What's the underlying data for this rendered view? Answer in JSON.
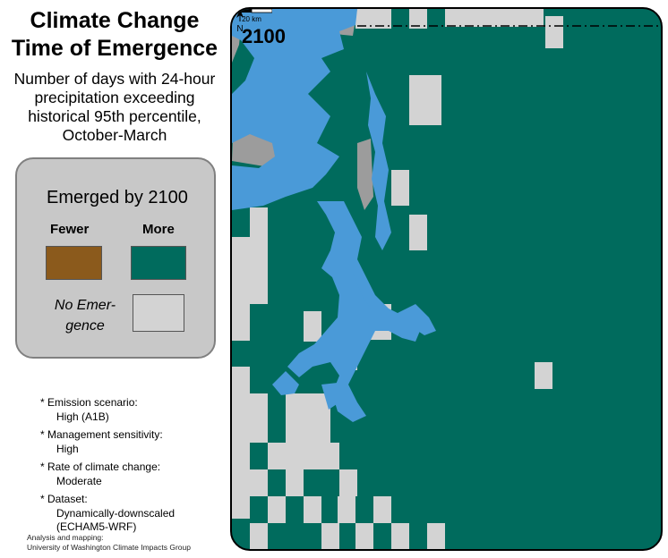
{
  "title": {
    "line1": "Climate Change",
    "line2": "Time of Emergence"
  },
  "subtitle": {
    "line1": "Number of days with 24-hour",
    "line2": "precipitation exceeding",
    "line3": "historical 95th percentile,",
    "line4": "October-March"
  },
  "legend": {
    "title": "Emerged by 2100",
    "fewer_label": "Fewer",
    "more_label": "More",
    "no_emergence_line1": "No Emer-",
    "no_emergence_line2": "gence",
    "colors": {
      "fewer": "#8b5a1c",
      "more": "#006b5d",
      "no_emergence": "#d3d3d3",
      "water": "#4a9ad8",
      "no_data": "#9c9c9c"
    }
  },
  "notes": [
    {
      "label": "* Emission scenario:",
      "value": "High (A1B)"
    },
    {
      "label": "* Management sensitivity:",
      "value": "High"
    },
    {
      "label": "* Rate of climate change:",
      "value": "Moderate"
    },
    {
      "label": "* Dataset:",
      "value": "Dynamically-downscaled",
      "value2": "(ECHAM5-WRF)"
    }
  ],
  "credit": {
    "line1": "Analysis and mapping:",
    "line2": "University of Washington Climate Impacts Group"
  },
  "map": {
    "year": "2100",
    "north_label": "N",
    "scale_label": "20 km"
  }
}
